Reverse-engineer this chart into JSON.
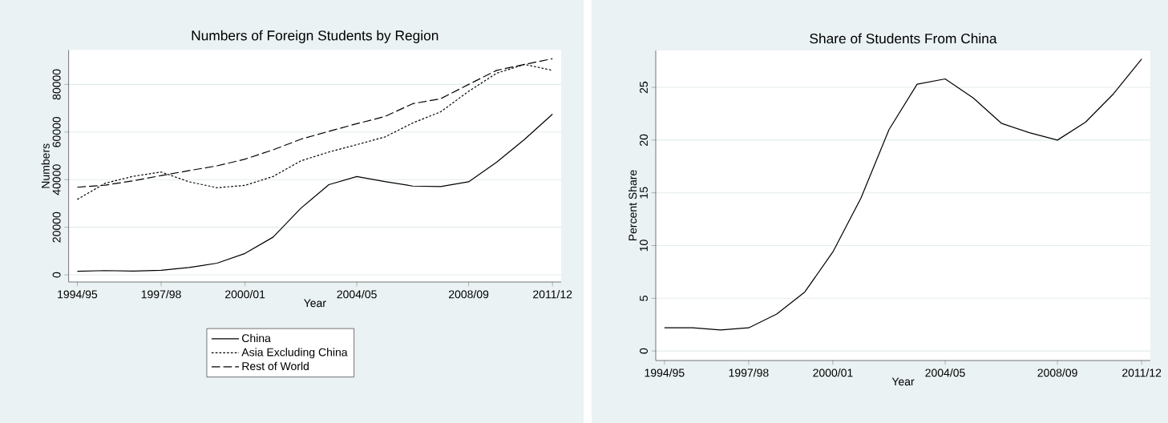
{
  "chart_data": [
    {
      "type": "line",
      "title": "Numbers of Foreign Students by Region",
      "xlabel": "Year",
      "ylabel": "Numbers",
      "categories": [
        "1994/95",
        null,
        null,
        "1997/98",
        null,
        null,
        "2000/01",
        null,
        null,
        null,
        "2004/05",
        null,
        null,
        null,
        "2008/09",
        null,
        null,
        "2011/12"
      ],
      "series": [
        {
          "name": "China",
          "color": "#000000",
          "line_style": "solid",
          "values": [
            1500,
            1800,
            1600,
            1900,
            3100,
            4900,
            9000,
            15800,
            28000,
            37900,
            41300,
            39200,
            37300,
            37100,
            39100,
            47300,
            56900,
            67500
          ]
        },
        {
          "name": "Asia Excluding China",
          "color": "#000000",
          "line_style": "dotted",
          "values": [
            31700,
            38500,
            41400,
            43200,
            39100,
            36600,
            37600,
            41300,
            47900,
            51600,
            54700,
            57900,
            63800,
            68500,
            77100,
            84700,
            88400,
            85900
          ]
        },
        {
          "name": "Rest of World",
          "color": "#000000",
          "line_style": "dashed",
          "values": [
            36800,
            37700,
            39500,
            41700,
            43800,
            45800,
            48600,
            52500,
            57000,
            60300,
            63500,
            66500,
            71900,
            74000,
            80000,
            85900,
            88400,
            90800
          ]
        }
      ],
      "ylim": [
        -3000,
        94400
      ],
      "yticks": [
        0,
        20000,
        40000,
        60000,
        80000
      ],
      "grid": "y",
      "legend": "bottom"
    },
    {
      "type": "line",
      "title": "Share of Students From China",
      "xlabel": "Year",
      "ylabel": "Percent Share",
      "categories": [
        "1994/95",
        null,
        null,
        "1997/98",
        null,
        null,
        "2000/01",
        null,
        null,
        null,
        "2004/05",
        null,
        null,
        null,
        "2008/09",
        null,
        null,
        "2011/12"
      ],
      "series": [
        {
          "color": "#000000",
          "line_style": "solid",
          "values": [
            2.2,
            2.2,
            2.0,
            2.2,
            3.5,
            5.6,
            9.4,
            14.5,
            21.0,
            25.3,
            25.8,
            24.0,
            21.6,
            20.7,
            20.0,
            21.7,
            24.4,
            27.7
          ]
        }
      ],
      "ylim": [
        -0.9,
        28.5
      ],
      "yticks": [
        0,
        5,
        10,
        15,
        20,
        25
      ],
      "grid": "y"
    }
  ]
}
